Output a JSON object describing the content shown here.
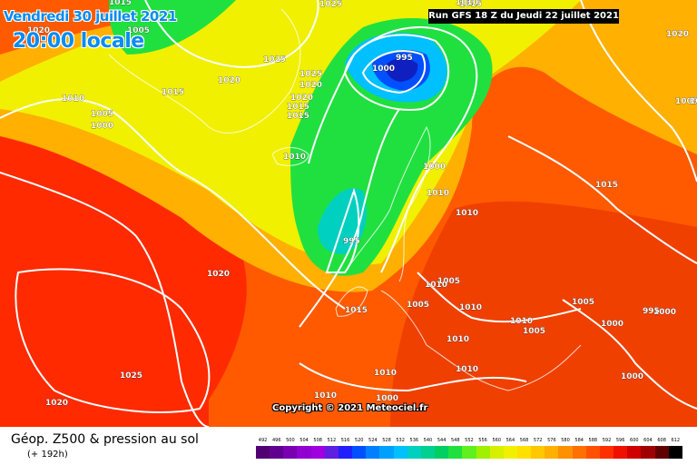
{
  "header": {
    "date": "Vendredi 30 juillet 2021",
    "time": "20:00 locale",
    "run": "Run GFS 18 Z du Jeudi 22 juillet 2021"
  },
  "map": {
    "copyright": "Copyright © 2021 Meteociel.fr",
    "highs_lows": [
      {
        "label": "995"
      },
      {
        "label": "1000"
      },
      {
        "label": "995"
      }
    ],
    "isobar_labels": [
      "1020",
      "1005",
      "1025",
      "1015",
      "1020",
      "1025",
      "1025",
      "1010",
      "1015",
      "1020",
      "1020",
      "1015",
      "1015",
      "1005",
      "1000",
      "1010",
      "1010",
      "1015",
      "1020",
      "1000",
      "1005",
      "1005",
      "1010",
      "1005",
      "1010",
      "1010",
      "1010",
      "1005",
      "1010",
      "1000",
      "1005",
      "1000",
      "1005",
      "1000",
      "995",
      "1015",
      "1015",
      "1025",
      "1020",
      "1020",
      "1010",
      "1010",
      "1010",
      "1010",
      "1000"
    ],
    "colors": {
      "ocean_low": "#ff2a00",
      "high_pressure": "#ff6a00",
      "mid": "#ffb000",
      "yellow": "#f0f000",
      "green": "#20e040",
      "blue_low": "#0a8cf0",
      "deep_low": "#1020c0"
    }
  },
  "legend": {
    "title": "Géop. Z500 & pression au sol",
    "subtitle": "(+ 192h)",
    "scale_labels": [
      "492",
      "496",
      "500",
      "504",
      "508",
      "512",
      "516",
      "520",
      "524",
      "528",
      "532",
      "536",
      "540",
      "544",
      "548",
      "552",
      "556",
      "560",
      "564",
      "568",
      "572",
      "576",
      "580",
      "584",
      "588",
      "592",
      "596",
      "600",
      "604",
      "608",
      "612"
    ],
    "scale_colors": [
      "#500070",
      "#600090",
      "#7a00b0",
      "#9000d0",
      "#a000e0",
      "#6020e0",
      "#2020ff",
      "#0050ff",
      "#0080ff",
      "#00a0ff",
      "#00c0ff",
      "#00d0c0",
      "#00d090",
      "#00d060",
      "#20e040",
      "#60f020",
      "#a0f000",
      "#d8f000",
      "#f0f000",
      "#ffe000",
      "#ffc800",
      "#ffb000",
      "#ff9000",
      "#ff7000",
      "#ff5000",
      "#ff3000",
      "#f01000",
      "#d00000",
      "#a00000",
      "#600000",
      "#000000"
    ]
  }
}
